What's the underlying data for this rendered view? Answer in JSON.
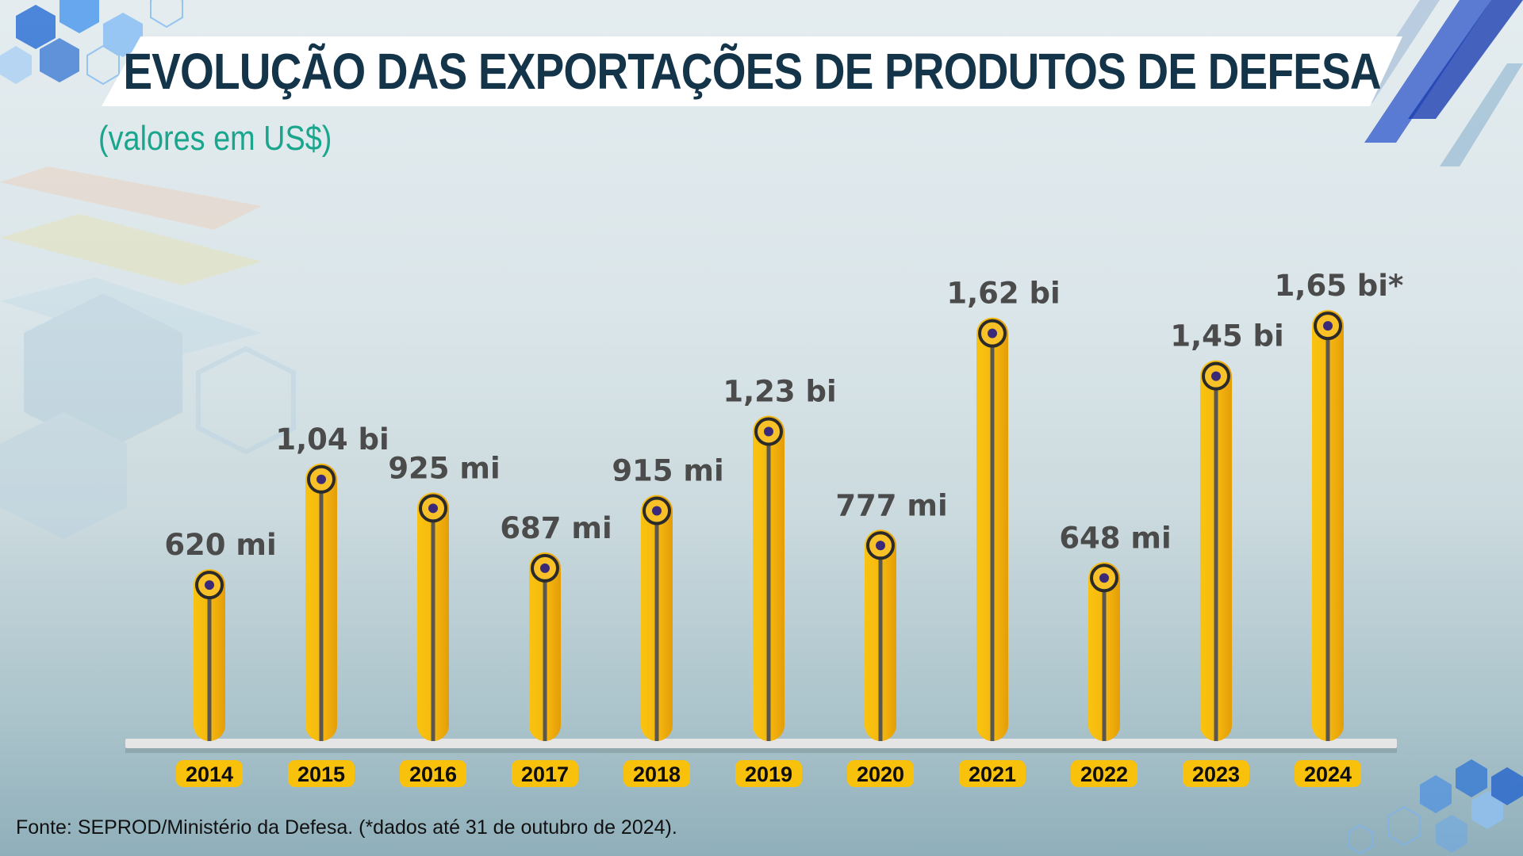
{
  "header": {
    "title": "EVOLUÇÃO DAS EXPORTAÇÕES DE PRODUTOS DE DEFESA",
    "subtitle": "(valores em US$)"
  },
  "footer": {
    "source": "Fonte: SEPROD/Ministério da Defesa. (*dados até 31 de outubro de 2024)."
  },
  "colors": {
    "bar": "#f5b70f",
    "bar_dark": "#e49d08",
    "stem": "#5a5650",
    "marker_ring": "#2b2a2a",
    "marker_dot": "#3a2a78",
    "value_label": "#4b4b4b",
    "year_badge": "#f8c20c",
    "baseline": "#e5e5e5",
    "title": "#133449",
    "subtitle": "#1aa58d"
  },
  "chart_data": {
    "type": "bar",
    "categories": [
      "2014",
      "2015",
      "2016",
      "2017",
      "2018",
      "2019",
      "2020",
      "2021",
      "2022",
      "2023",
      "2024"
    ],
    "values": [
      0.62,
      1.04,
      0.925,
      0.687,
      0.915,
      1.23,
      0.777,
      1.62,
      0.648,
      1.45,
      1.65
    ],
    "value_unit": "US$ bilhões",
    "data_labels": [
      "620 mi",
      "1,04 bi",
      "925 mi",
      "687 mi",
      "915 mi",
      "1,23 bi",
      "777 mi",
      "1,62 bi",
      "648 mi",
      "1,45 bi",
      "1,65 bi*"
    ],
    "title": "EVOLUÇÃO DAS EXPORTAÇÕES DE PRODUTOS DE DEFESA",
    "subtitle": "(valores em US$)",
    "xlabel": "",
    "ylabel": "",
    "ylim": [
      0,
      2.0
    ],
    "grid": false,
    "legend": "none"
  }
}
